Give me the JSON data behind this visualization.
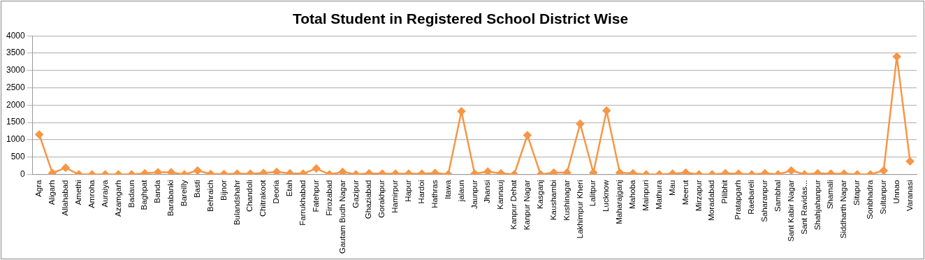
{
  "chart_data": {
    "type": "line",
    "title": "Total Student in Registered School District Wise",
    "categories": [
      "Agra",
      "Aligarh",
      "Allahabad",
      "Amethi",
      "Amroha",
      "Auraiya",
      "Azamgarh",
      "Badaun",
      "Baghpat",
      "Banda",
      "Barabanki",
      "Bareilly",
      "Basti",
      "Behraich",
      "Bijnor",
      "Bulandshahr",
      "Chandoli",
      "Chitrakoot",
      "Deoria",
      "Etah",
      "Farrukhabad",
      "Fatehpur",
      "Firozabad",
      "Gautam Budh Nagar",
      "Gazipur",
      "Ghaziabad",
      "Gorakhpur",
      "Hamirpur",
      "Hapur",
      "Hardoi",
      "Hathras",
      "Itawa",
      "jalaun",
      "Jaunpur",
      "Jhansi",
      "Kannauj",
      "Kanpur Dehat",
      "Kanpur Nagar",
      "Kasganj",
      "Kaushambi",
      "Kushinagar",
      "Lakhimpur Kheri",
      "Lalitpur",
      "Lucknow",
      "Maharajganj",
      "Mahoba",
      "Mainpuri",
      "Mathura",
      "Mau",
      "Meerut",
      "Mirzapur",
      "Moradabad",
      "Pilibhit",
      "Pratapgarh",
      "Raebareli",
      "Saharanpur",
      "Sambhal",
      "Sant Kabir Nagar",
      "Sant Ravidas...",
      "Shahjahanpur",
      "Shamali",
      "Siddharth Nagar",
      "Sitapur",
      "Sonbhadra",
      "Sultanpur",
      "Unnao",
      "Varanasi"
    ],
    "series": [
      {
        "color": "#f79646",
        "values": [
          1150,
          40,
          190,
          0,
          0,
          0,
          0,
          0,
          30,
          60,
          60,
          0,
          110,
          10,
          10,
          20,
          20,
          40,
          70,
          30,
          20,
          170,
          0,
          70,
          0,
          30,
          20,
          20,
          20,
          20,
          40,
          0,
          1820,
          20,
          80,
          30,
          0,
          1130,
          0,
          50,
          50,
          1460,
          50,
          1840,
          50,
          30,
          0,
          0,
          20,
          50,
          0,
          0,
          30,
          20,
          0,
          30,
          0,
          110,
          0,
          30,
          20,
          20,
          0,
          0,
          110,
          3400,
          380
        ]
      }
    ],
    "ylim": [
      0,
      4000
    ],
    "yticks": [
      0,
      500,
      1000,
      1500,
      2000,
      2500,
      3000,
      3500,
      4000
    ],
    "grid": "y",
    "legend": false,
    "marker": "diamond",
    "line_style": "solid"
  }
}
